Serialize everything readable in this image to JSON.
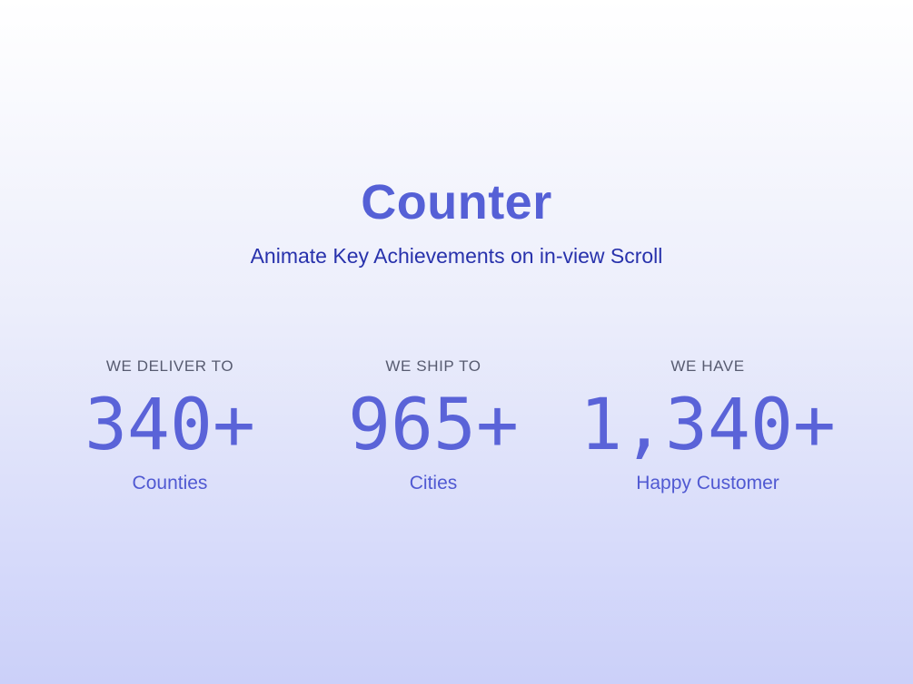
{
  "page": {
    "title": "Counter",
    "subtitle": "Animate Key Achievements on in-view Scroll"
  },
  "counters": [
    {
      "label": "WE DELIVER TO",
      "value": "340+",
      "caption": "Counties"
    },
    {
      "label": "WE SHIP TO",
      "value": "965+",
      "caption": "Cities"
    },
    {
      "label": "WE HAVE",
      "value": "1,340+",
      "caption": "Happy Customer"
    }
  ],
  "colors": {
    "title": "#5560d6",
    "subtitle": "#2832ac",
    "label": "#575b70",
    "value": "#5a63d8",
    "caption": "#5059d2",
    "background_top": "#ffffff",
    "background_bottom": "#cbd0f9"
  }
}
